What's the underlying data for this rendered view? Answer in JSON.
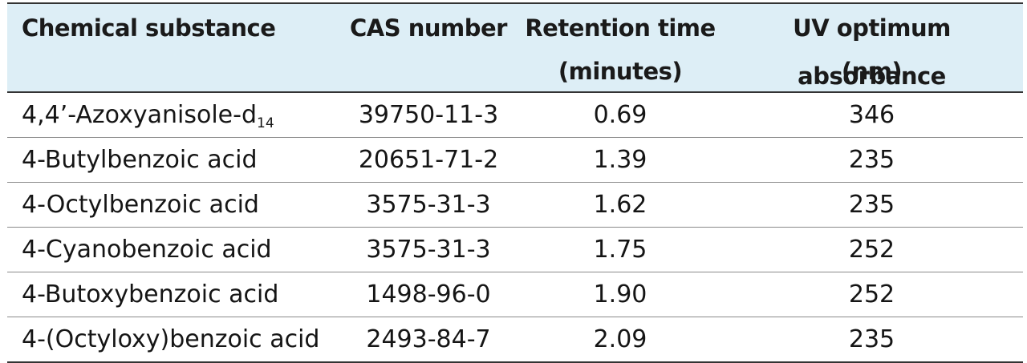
{
  "table": {
    "headers": [
      {
        "lines": [
          "Chemical substance"
        ]
      },
      {
        "lines": [
          "CAS number"
        ]
      },
      {
        "lines": [
          "Retention time",
          "(minutes)"
        ]
      },
      {
        "lines": [
          "UV optimum absorbance",
          "(nm)"
        ]
      }
    ],
    "rows": [
      {
        "substance": "4,4’-Azoxyanisole-d",
        "substance_sub": "14",
        "cas": "39750-11-3",
        "retention": "0.69",
        "uv": "346"
      },
      {
        "substance": "4-Butylbenzoic acid",
        "substance_sub": "",
        "cas": "20651-71-2",
        "retention": "1.39",
        "uv": "235"
      },
      {
        "substance": "4-Octylbenzoic acid",
        "substance_sub": "",
        "cas": "3575-31-3",
        "retention": "1.62",
        "uv": "235"
      },
      {
        "substance": "4-Cyanobenzoic acid",
        "substance_sub": "",
        "cas": "3575-31-3",
        "retention": "1.75",
        "uv": "252"
      },
      {
        "substance": "4-Butoxybenzoic acid",
        "substance_sub": "",
        "cas": "1498-96-0",
        "retention": "1.90",
        "uv": "252"
      },
      {
        "substance": "4-(Octyloxy)benzoic acid",
        "substance_sub": "",
        "cas": "2493-84-7",
        "retention": "2.09",
        "uv": "235"
      }
    ]
  },
  "colors": {
    "header_background": "#ddeef6",
    "rule_color": "#333333"
  }
}
